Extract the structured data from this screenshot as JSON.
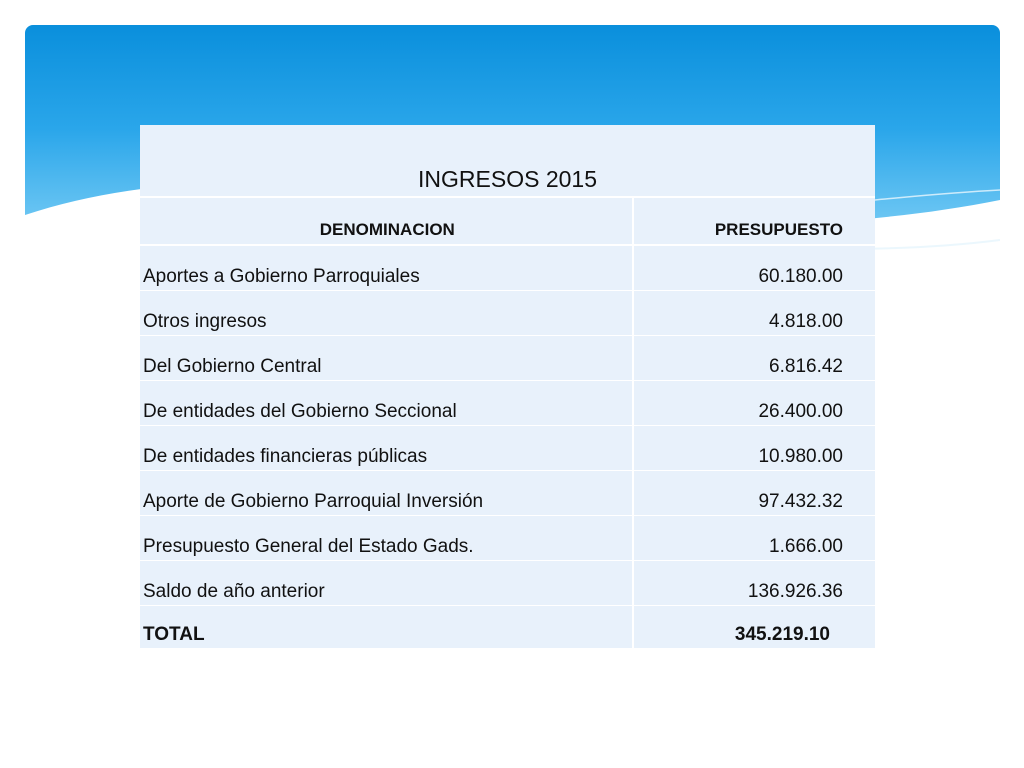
{
  "table": {
    "title": "INGRESOS 2015",
    "headers": {
      "denominacion": "DENOMINACION",
      "presupuesto": "PRESUPUESTO"
    },
    "rows": [
      {
        "name": "Aportes a Gobierno Parroquiales",
        "amount": "60.180.00"
      },
      {
        "name": "Otros ingresos",
        "amount": "4.818.00"
      },
      {
        "name": "Del Gobierno Central",
        "amount": "6.816.42"
      },
      {
        "name": "De entidades del Gobierno Seccional",
        "amount": "26.400.00"
      },
      {
        "name": "De entidades financieras públicas",
        "amount": "10.980.00"
      },
      {
        "name": "Aporte de Gobierno Parroquial Inversión",
        "amount": "97.432.32"
      },
      {
        "name": "Presupuesto General del Estado Gads.",
        "amount": "1.666.00"
      },
      {
        "name": "Saldo de año anterior",
        "amount": "136.926.36"
      }
    ],
    "total": {
      "label": "TOTAL",
      "amount": "345.219.10"
    }
  },
  "colors": {
    "banner_top": "#0a8fdc",
    "banner_bottom": "#a9dcf7",
    "cell_background": "#e8f1fb"
  }
}
